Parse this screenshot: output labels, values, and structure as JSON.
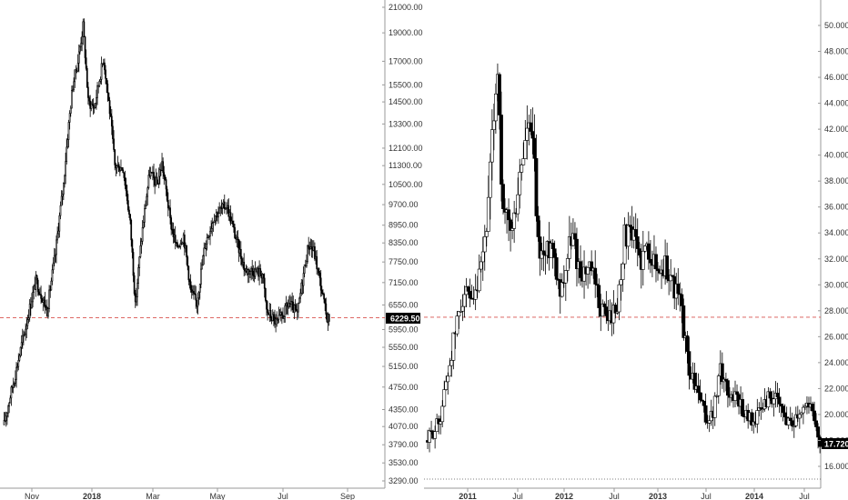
{
  "chart_data": [
    {
      "type": "candlestick",
      "title": "",
      "y_scale": "log",
      "y_ticks": [
        "3290.00",
        "3530.00",
        "3790.00",
        "4070.00",
        "4350.00",
        "4750.00",
        "5150.00",
        "5550.00",
        "5950.00",
        "6550.00",
        "7150.00",
        "7750.00",
        "8350.00",
        "8950.00",
        "9700.00",
        "10500.00",
        "11300.00",
        "12100.00",
        "13300.00",
        "14500.00",
        "15500.00",
        "17000.00",
        "19000.00",
        "21000.00"
      ],
      "x_labels": [
        {
          "label": "Nov",
          "bold": false
        },
        {
          "label": "2018",
          "bold": true
        },
        {
          "label": "Mar",
          "bold": false
        },
        {
          "label": "May",
          "bold": false
        },
        {
          "label": "Jul",
          "bold": false
        },
        {
          "label": "Sep",
          "bold": false
        }
      ],
      "last_value": "6229.50",
      "reference_line": 6229.5,
      "reference_color": "#d9534f",
      "price_path": [
        [
          "2017-10-01",
          4100
        ],
        [
          "2017-10-12",
          5000
        ],
        [
          "2017-10-22",
          6000
        ],
        [
          "2017-11-01",
          7200
        ],
        [
          "2017-11-12",
          6400
        ],
        [
          "2017-11-20",
          8000
        ],
        [
          "2017-11-28",
          10500
        ],
        [
          "2017-12-07",
          15500
        ],
        [
          "2017-12-12",
          17000
        ],
        [
          "2017-12-17",
          19500
        ],
        [
          "2017-12-22",
          14500
        ],
        [
          "2017-12-28",
          14200
        ],
        [
          "2018-01-06",
          17200
        ],
        [
          "2018-01-12",
          14000
        ],
        [
          "2018-01-17",
          11300
        ],
        [
          "2018-01-25",
          11200
        ],
        [
          "2018-02-01",
          9000
        ],
        [
          "2018-02-06",
          6500
        ],
        [
          "2018-02-12",
          8500
        ],
        [
          "2018-02-20",
          11000
        ],
        [
          "2018-02-27",
          10500
        ],
        [
          "2018-03-04",
          11400
        ],
        [
          "2018-03-12",
          9100
        ],
        [
          "2018-03-18",
          8200
        ],
        [
          "2018-03-25",
          8600
        ],
        [
          "2018-04-01",
          6900
        ],
        [
          "2018-04-07",
          6600
        ],
        [
          "2018-04-15",
          8300
        ],
        [
          "2018-04-24",
          9300
        ],
        [
          "2018-05-06",
          9700
        ],
        [
          "2018-05-15",
          8500
        ],
        [
          "2018-05-24",
          7500
        ],
        [
          "2018-06-01",
          7500
        ],
        [
          "2018-06-10",
          7400
        ],
        [
          "2018-06-14",
          6400
        ],
        [
          "2018-06-24",
          6100
        ],
        [
          "2018-06-30",
          6300
        ],
        [
          "2018-07-06",
          6600
        ],
        [
          "2018-07-14",
          6300
        ],
        [
          "2018-07-20",
          7400
        ],
        [
          "2018-07-25",
          8300
        ],
        [
          "2018-07-30",
          8100
        ],
        [
          "2018-08-07",
          6900
        ],
        [
          "2018-08-11",
          6300
        ],
        [
          "2018-08-14",
          6200
        ]
      ]
    },
    {
      "type": "candlestick",
      "title": "",
      "y_scale": "linear",
      "y_ticks": [
        "16.000",
        "18.000",
        "20.000",
        "22.000",
        "24.000",
        "26.000",
        "28.000",
        "30.000",
        "32.000",
        "34.000",
        "36.000",
        "38.000",
        "40.000",
        "42.000",
        "44.000",
        "46.000",
        "48.000",
        "50.000"
      ],
      "x_labels": [
        {
          "label": "2011",
          "bold": true
        },
        {
          "label": "Jul",
          "bold": false
        },
        {
          "label": "2012",
          "bold": true
        },
        {
          "label": "Jul",
          "bold": false
        },
        {
          "label": "2013",
          "bold": true
        },
        {
          "label": "Jul",
          "bold": false
        },
        {
          "label": "2014",
          "bold": true
        },
        {
          "label": "Jul",
          "bold": false
        }
      ],
      "last_value": "17.720",
      "reference_line": 27.5,
      "reference_color": "#d9534f",
      "price_path": [
        [
          "2010-08-01",
          18.0
        ],
        [
          "2010-09-15",
          19.5
        ],
        [
          "2010-10-15",
          23.0
        ],
        [
          "2010-11-15",
          26.5
        ],
        [
          "2010-12-15",
          29.5
        ],
        [
          "2011-01-20",
          28.0
        ],
        [
          "2011-02-20",
          31.0
        ],
        [
          "2011-03-20",
          36.0
        ],
        [
          "2011-04-15",
          45.0
        ],
        [
          "2011-04-28",
          47.0
        ],
        [
          "2011-05-10",
          35.0
        ],
        [
          "2011-06-01",
          35.0
        ],
        [
          "2011-06-20",
          34.0
        ],
        [
          "2011-07-15",
          38.0
        ],
        [
          "2011-08-15",
          42.0
        ],
        [
          "2011-09-05",
          41.0
        ],
        [
          "2011-09-25",
          33.0
        ],
        [
          "2011-10-20",
          32.0
        ],
        [
          "2011-11-15",
          33.5
        ],
        [
          "2011-12-20",
          29.5
        ],
        [
          "2012-02-01",
          34.0
        ],
        [
          "2012-03-01",
          31.0
        ],
        [
          "2012-04-15",
          31.0
        ],
        [
          "2012-05-15",
          28.5
        ],
        [
          "2012-06-15",
          27.5
        ],
        [
          "2012-07-20",
          28.0
        ],
        [
          "2012-08-20",
          34.0
        ],
        [
          "2012-09-20",
          33.5
        ],
        [
          "2012-10-20",
          32.0
        ],
        [
          "2012-11-20",
          33.0
        ],
        [
          "2012-12-20",
          31.0
        ],
        [
          "2013-01-20",
          31.5
        ],
        [
          "2013-02-20",
          30.0
        ],
        [
          "2013-03-20",
          28.5
        ],
        [
          "2013-04-10",
          25.0
        ],
        [
          "2013-04-25",
          23.0
        ],
        [
          "2013-05-20",
          22.0
        ],
        [
          "2013-06-25",
          19.5
        ],
        [
          "2013-07-20",
          20.0
        ],
        [
          "2013-08-20",
          23.5
        ],
        [
          "2013-09-20",
          21.5
        ],
        [
          "2013-10-20",
          21.5
        ],
        [
          "2013-11-20",
          20.0
        ],
        [
          "2013-12-25",
          19.5
        ],
        [
          "2014-02-20",
          21.5
        ],
        [
          "2014-03-20",
          21.0
        ],
        [
          "2014-04-20",
          19.7
        ],
        [
          "2014-05-20",
          19.5
        ],
        [
          "2014-06-20",
          20.5
        ],
        [
          "2014-07-20",
          21.0
        ],
        [
          "2014-08-15",
          19.0
        ],
        [
          "2014-09-05",
          17.7
        ]
      ]
    }
  ]
}
